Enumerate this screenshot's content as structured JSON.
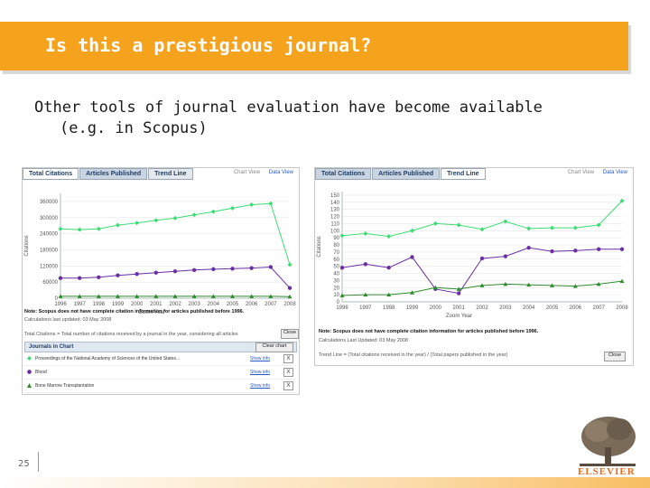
{
  "title": "Is this a prestigious journal?",
  "body": {
    "line1": "Other tools of journal evaluation have become available",
    "line2": "(e.g. in Scopus)"
  },
  "page_number": "25",
  "logo_text": "ELSEVIER",
  "colors": {
    "accent": "#f5a21d",
    "green": "#3ddc74",
    "purple": "#6a2fa3",
    "darkgreen": "#2e8b2e"
  },
  "left_panel": {
    "tabs": [
      "Total Citations",
      "Articles Published",
      "Trend Line"
    ],
    "view_links": [
      "Chart View",
      "Data View"
    ],
    "ylabel": "Citations",
    "xlabel": "Zoom Year",
    "note": "Note: Scopus does not have complete citation information for articles published before 1996.",
    "updated": "Calculations last updated: 03 May 2008",
    "footer": "Total Citations = Total number of citations received by a journal in the year, considering all articles",
    "close": "Close",
    "journals_title": "Journals in Chart",
    "clear_chart": "Clear chart",
    "journals": [
      {
        "name": "Proceedings of the National Academy of Sciences of the United States...",
        "link": "Show info",
        "x": "X"
      },
      {
        "name": "Blood",
        "link": "Show info",
        "x": "X"
      },
      {
        "name": "Bone Marrow Transplantation",
        "link": "Show info",
        "x": "X"
      }
    ]
  },
  "right_panel": {
    "tabs": [
      "Total Citations",
      "Articles Published",
      "Trend Line"
    ],
    "view_links": [
      "Chart View",
      "Data View"
    ],
    "ylabel": "Citations",
    "xlabel": "Zoom Year",
    "note": "Note: Scopus does not have complete citation information for articles published before 1996.",
    "updated": "Calculations Last Updated: 03 May 2008",
    "footer": "Trend Line = (Total citations received in the year) / (Total papers published in the year)",
    "close": "Close"
  },
  "chart_data": [
    {
      "type": "line",
      "title": "Total Citations",
      "xlabel": "Zoom Year",
      "ylabel": "Citations",
      "x": [
        1996,
        1997,
        1998,
        1999,
        2000,
        2001,
        2002,
        2003,
        2004,
        2005,
        2006,
        2007,
        2008
      ],
      "xticks": [
        "1996",
        "1997",
        "1998",
        "1999",
        "2000",
        "2001",
        "2002",
        "2003",
        "2004",
        "2005",
        "2006",
        "2007",
        "2008"
      ],
      "yticks": [
        "0",
        "60000",
        "120000",
        "180000",
        "240000",
        "300000",
        "360000"
      ],
      "ylim": [
        0,
        390000
      ],
      "series": [
        {
          "name": "Proceedings of the National Academy of Sciences",
          "color": "#3ddc74",
          "marker": "diamond",
          "values": [
            258000,
            255000,
            258000,
            272000,
            280000,
            290000,
            298000,
            310000,
            322000,
            335000,
            348000,
            352000,
            125000
          ]
        },
        {
          "name": "Blood",
          "color": "#6a2fa3",
          "marker": "circle",
          "values": [
            75000,
            75000,
            78000,
            85000,
            90000,
            95000,
            100000,
            105000,
            108000,
            110000,
            112000,
            116000,
            38000
          ]
        },
        {
          "name": "Bone Marrow Transplantation",
          "color": "#2e8b2e",
          "marker": "triangle",
          "values": [
            7000,
            7000,
            7000,
            7000,
            7000,
            7000,
            7000,
            7000,
            7000,
            7000,
            7000,
            7000,
            6000
          ]
        }
      ]
    },
    {
      "type": "line",
      "title": "Trend Line",
      "xlabel": "Zoom Year",
      "ylabel": "Citations",
      "x": [
        1996,
        1997,
        1998,
        1999,
        2000,
        2001,
        2002,
        2003,
        2004,
        2005,
        2006,
        2007,
        2008
      ],
      "xticks": [
        "1996",
        "1997",
        "1998",
        "1999",
        "2000",
        "2001",
        "2002",
        "2003",
        "2004",
        "2005",
        "2006",
        "2007",
        "2008"
      ],
      "yticks": [
        "0",
        "10",
        "20",
        "30",
        "40",
        "50",
        "60",
        "70",
        "80",
        "90",
        "100",
        "110",
        "120",
        "130",
        "140",
        "150"
      ],
      "ylim": [
        0,
        155
      ],
      "series": [
        {
          "name": "Proceedings of the National Academy of Sciences",
          "color": "#3ddc74",
          "marker": "diamond",
          "values": [
            93,
            96,
            92,
            100,
            110,
            108,
            102,
            113,
            103,
            104,
            104,
            108,
            142
          ]
        },
        {
          "name": "Blood",
          "color": "#6a2fa3",
          "marker": "circle",
          "values": [
            48,
            53,
            48,
            63,
            18,
            12,
            61,
            64,
            76,
            71,
            72,
            74,
            74
          ]
        },
        {
          "name": "Bone Marrow Transplantation",
          "color": "#2e8b2e",
          "marker": "triangle",
          "values": [
            9,
            10,
            10,
            13,
            20,
            18,
            23,
            25,
            24,
            23,
            22,
            25,
            29
          ]
        }
      ]
    }
  ]
}
